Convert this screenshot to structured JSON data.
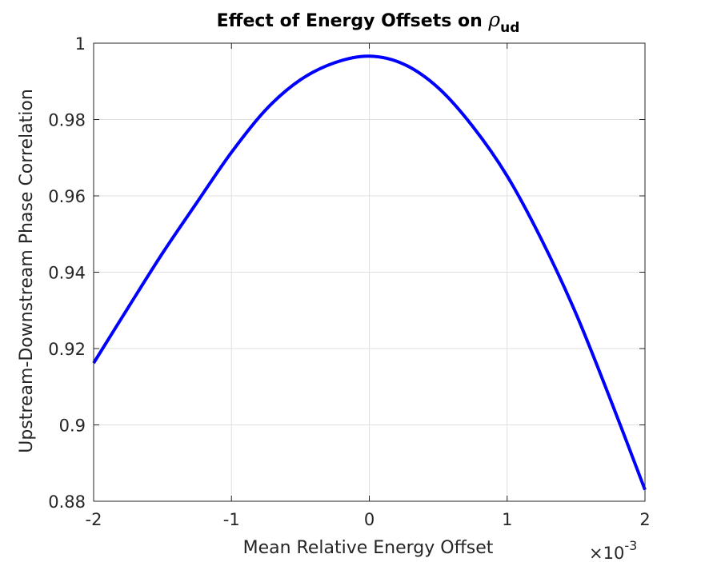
{
  "chart_data": {
    "type": "line",
    "title": {
      "text": "Effect of Energy Offsets on ",
      "symbol": "ρ",
      "subscript": "ud"
    },
    "xlabel": "Mean Relative Energy Offset",
    "ylabel": "Upstream-Downstream Phase Correlation",
    "x_exponent": {
      "times": "×10",
      "power": "-3"
    },
    "xlim": [
      -2,
      2
    ],
    "ylim": [
      0.88,
      1.0
    ],
    "xticks": [
      -2,
      -1,
      0,
      1,
      2
    ],
    "xtick_labels": [
      "-2",
      "-1",
      "0",
      "1",
      "2"
    ],
    "yticks": [
      0.88,
      0.9,
      0.92,
      0.94,
      0.96,
      0.98,
      1.0
    ],
    "ytick_labels": [
      "0.88",
      "0.9",
      "0.92",
      "0.94",
      "0.96",
      "0.98",
      "1"
    ],
    "grid": true,
    "series": [
      {
        "color": "#0000ff",
        "x": [
          -2.0,
          -1.75,
          -1.5,
          -1.25,
          -1.0,
          -0.75,
          -0.5,
          -0.25,
          0.0,
          0.25,
          0.5,
          0.75,
          1.0,
          1.25,
          1.5,
          1.75,
          2.0
        ],
        "y": [
          0.9162,
          0.9307,
          0.945,
          0.9583,
          0.9714,
          0.9826,
          0.9904,
          0.9949,
          0.9966,
          0.9945,
          0.9883,
          0.9782,
          0.9652,
          0.9485,
          0.9291,
          0.9066,
          0.883
        ]
      }
    ]
  }
}
